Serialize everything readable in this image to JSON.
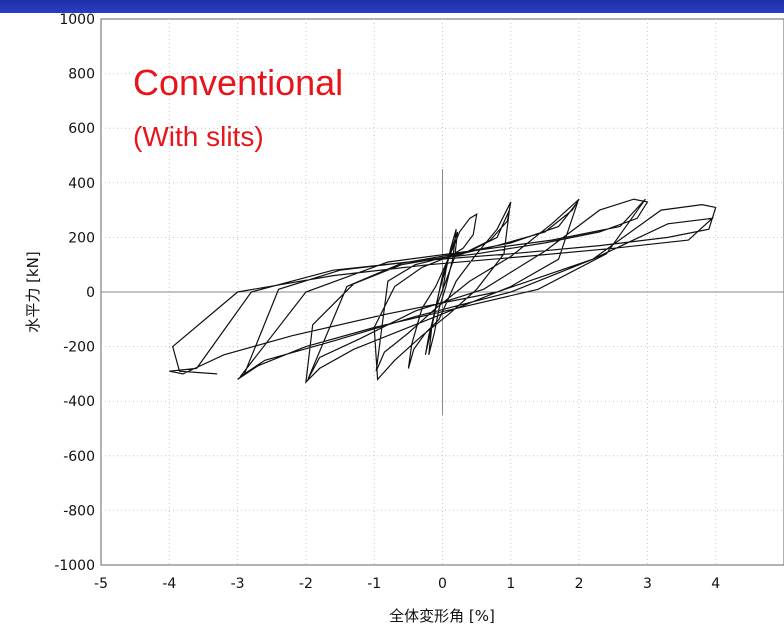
{
  "chart_data": {
    "type": "line",
    "title": "",
    "xlabel": "全体変形角 [%]",
    "ylabel": "水平力 [kN]",
    "xlim": [
      -5,
      5
    ],
    "ylim": [
      -1000,
      1000
    ],
    "x_ticks": [
      "-5",
      "-4",
      "-3",
      "-2",
      "-1",
      "0",
      "1",
      "2",
      "3",
      "4"
    ],
    "y_ticks": [
      "1000",
      "800",
      "600",
      "400",
      "200",
      "0",
      "-200",
      "-400",
      "-600",
      "-800",
      "-1000"
    ],
    "grid": true,
    "annotations": {
      "title": "Conventional",
      "subtitle": "(With slits)"
    },
    "series": [
      {
        "x": [
          0,
          0.05,
          0.12,
          0.2,
          0.15,
          0.05,
          -0.05,
          -0.12,
          -0.2,
          -0.15,
          -0.05,
          0.05,
          0.15,
          0.22,
          0.18,
          0.05,
          -0.1,
          -0.2,
          -0.25,
          -0.15,
          0,
          0.1,
          0.25,
          0.4,
          0.5,
          0.45,
          0.3,
          0.1,
          -0.1,
          -0.3,
          -0.45,
          -0.5,
          -0.42,
          -0.25,
          -0.05,
          0.2,
          0.5,
          0.8,
          1.0,
          0.95,
          0.7,
          0.3,
          0,
          -0.3,
          -0.7,
          -1.0,
          -0.95,
          -0.7,
          -0.3,
          0.1,
          0.5,
          0.9,
          0.98,
          0.8,
          0.4,
          0,
          -0.4,
          -0.8,
          -0.97,
          -0.85,
          -0.5,
          -0.1,
          0.4,
          1.0,
          1.6,
          2.0,
          1.9,
          1.5,
          0.8,
          0.1,
          -0.6,
          -1.3,
          -1.9,
          -2.0,
          -1.8,
          -1.3,
          -0.6,
          0.2,
          1.0,
          1.7,
          1.98,
          1.7,
          1.0,
          0.2,
          -0.6,
          -1.4,
          -1.97,
          -1.8,
          -1.2,
          -0.4,
          0.6,
          1.5,
          2.3,
          2.8,
          3.0,
          2.85,
          2.3,
          1.5,
          0.5,
          -0.5,
          -1.5,
          -2.4,
          -2.9,
          -3.0,
          -2.7,
          -2.0,
          -1.0,
          0.2,
          1.4,
          2.4,
          2.97,
          2.6,
          1.6,
          0.4,
          -0.8,
          -2.0,
          -2.96,
          -2.6,
          -1.6,
          -0.4,
          1.0,
          2.2,
          3.2,
          3.8,
          4.0,
          3.9,
          3.3,
          2.3,
          1.0,
          -0.3,
          -1.6,
          -2.8,
          -3.6,
          -4.0,
          -3.8,
          -3.2,
          -2.2,
          -0.8,
          0.8,
          2.2,
          3.3,
          3.95,
          3.6,
          2.5,
          1.2,
          -0.2,
          -1.6,
          -3.0,
          -3.95,
          -3.85,
          -3.3
        ],
        "y": [
          0,
          80,
          160,
          230,
          120,
          20,
          -60,
          -150,
          -230,
          -110,
          0,
          90,
          170,
          220,
          130,
          40,
          -60,
          -160,
          -230,
          -120,
          60,
          130,
          220,
          270,
          285,
          210,
          160,
          130,
          20,
          -60,
          -190,
          -280,
          -210,
          -150,
          -100,
          40,
          140,
          230,
          330,
          260,
          190,
          140,
          120,
          90,
          20,
          -130,
          -320,
          -250,
          -160,
          -80,
          10,
          140,
          300,
          200,
          150,
          125,
          100,
          40,
          -290,
          -220,
          -150,
          -60,
          40,
          130,
          250,
          340,
          300,
          220,
          170,
          130,
          100,
          30,
          -120,
          -330,
          -280,
          -210,
          -140,
          -60,
          20,
          120,
          330,
          240,
          180,
          140,
          105,
          20,
          -320,
          -240,
          -170,
          -70,
          10,
          150,
          300,
          340,
          330,
          270,
          220,
          180,
          140,
          110,
          80,
          10,
          -300,
          -320,
          -270,
          -200,
          -130,
          -60,
          10,
          140,
          340,
          240,
          190,
          150,
          110,
          0,
          -310,
          -250,
          -180,
          -90,
          0,
          120,
          300,
          320,
          310,
          230,
          200,
          170,
          140,
          115,
          80,
          0,
          -280,
          -290,
          -300,
          -230,
          -160,
          -80,
          0,
          120,
          250,
          270,
          190,
          160,
          130,
          100,
          60,
          0,
          -200,
          -290,
          -300
        ]
      }
    ]
  }
}
